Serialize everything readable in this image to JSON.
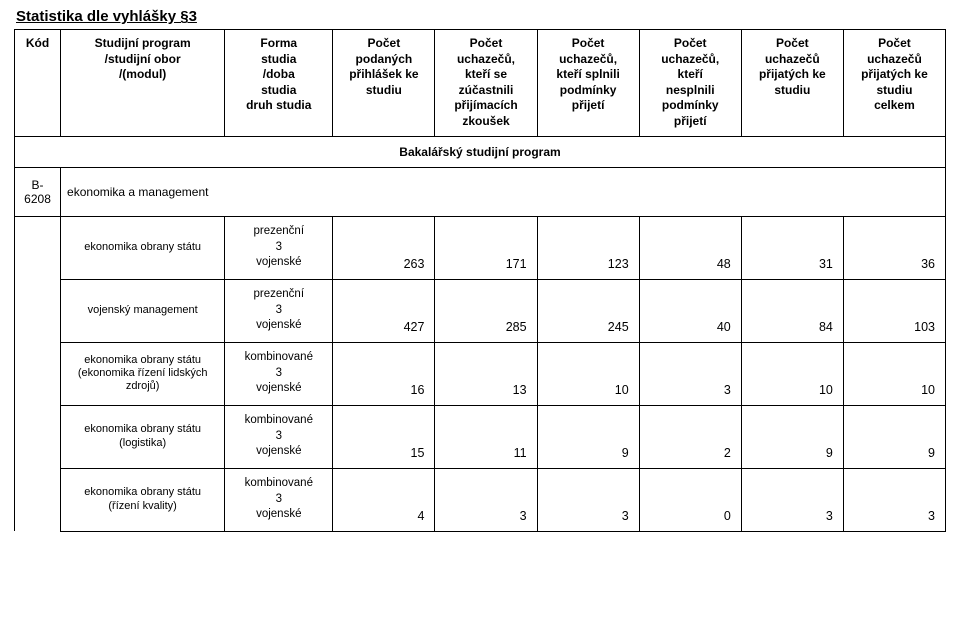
{
  "title": "Statistika dle vyhlášky §3",
  "headers": {
    "kod": "Kód",
    "program": "Studijní program\n/studijní obor\n/(modul)",
    "forma": "Forma\nstudia\n/doba\nstudia\ndruh studia",
    "podanych": "Počet\npodaných\npřihlášek ke\nstudiu",
    "zucastnili": "Počet\nuchazečů,\nkteří se\nzúčastnili\npřijímacích\nzkoušek",
    "splnili": "Počet\nuchazečů,\nkteří splnili\npodmínky\npřijetí",
    "nesplnili": "Počet\nuchazečů,\nkteří\nnesplnili\npodmínky\npřijetí",
    "prijatych": "Počet\nuchazečů\npřijatých ke\nstudiu",
    "celkem": "Počet\nuchazečů\npřijatých ke\nstudiu\ncelkem"
  },
  "section_title": "Bakalářský studijní program",
  "group": {
    "code": "B-6208",
    "name": "ekonomika a management"
  },
  "forms": {
    "prezencni": "prezenční\n3\nvojenské",
    "kombinovane": "kombinované\n3\nvojenské"
  },
  "rows": [
    {
      "name": "ekonomika obrany státu",
      "form": "prezencni",
      "v": [
        263,
        171,
        123,
        48,
        31,
        36
      ]
    },
    {
      "name": "vojenský management",
      "form": "prezencni",
      "v": [
        427,
        285,
        245,
        40,
        84,
        103
      ]
    },
    {
      "name": "ekonomika obrany státu\n(ekonomika řízení lidských\nzdrojů)",
      "form": "kombinovane",
      "v": [
        16,
        13,
        10,
        3,
        10,
        10
      ]
    },
    {
      "name": "ekonomika obrany státu\n(logistika)",
      "form": "kombinovane",
      "v": [
        15,
        11,
        9,
        2,
        9,
        9
      ]
    },
    {
      "name": "ekonomika obrany státu\n(řízení kvality)",
      "form": "kombinovane",
      "v": [
        4,
        3,
        3,
        0,
        3,
        3
      ]
    }
  ]
}
